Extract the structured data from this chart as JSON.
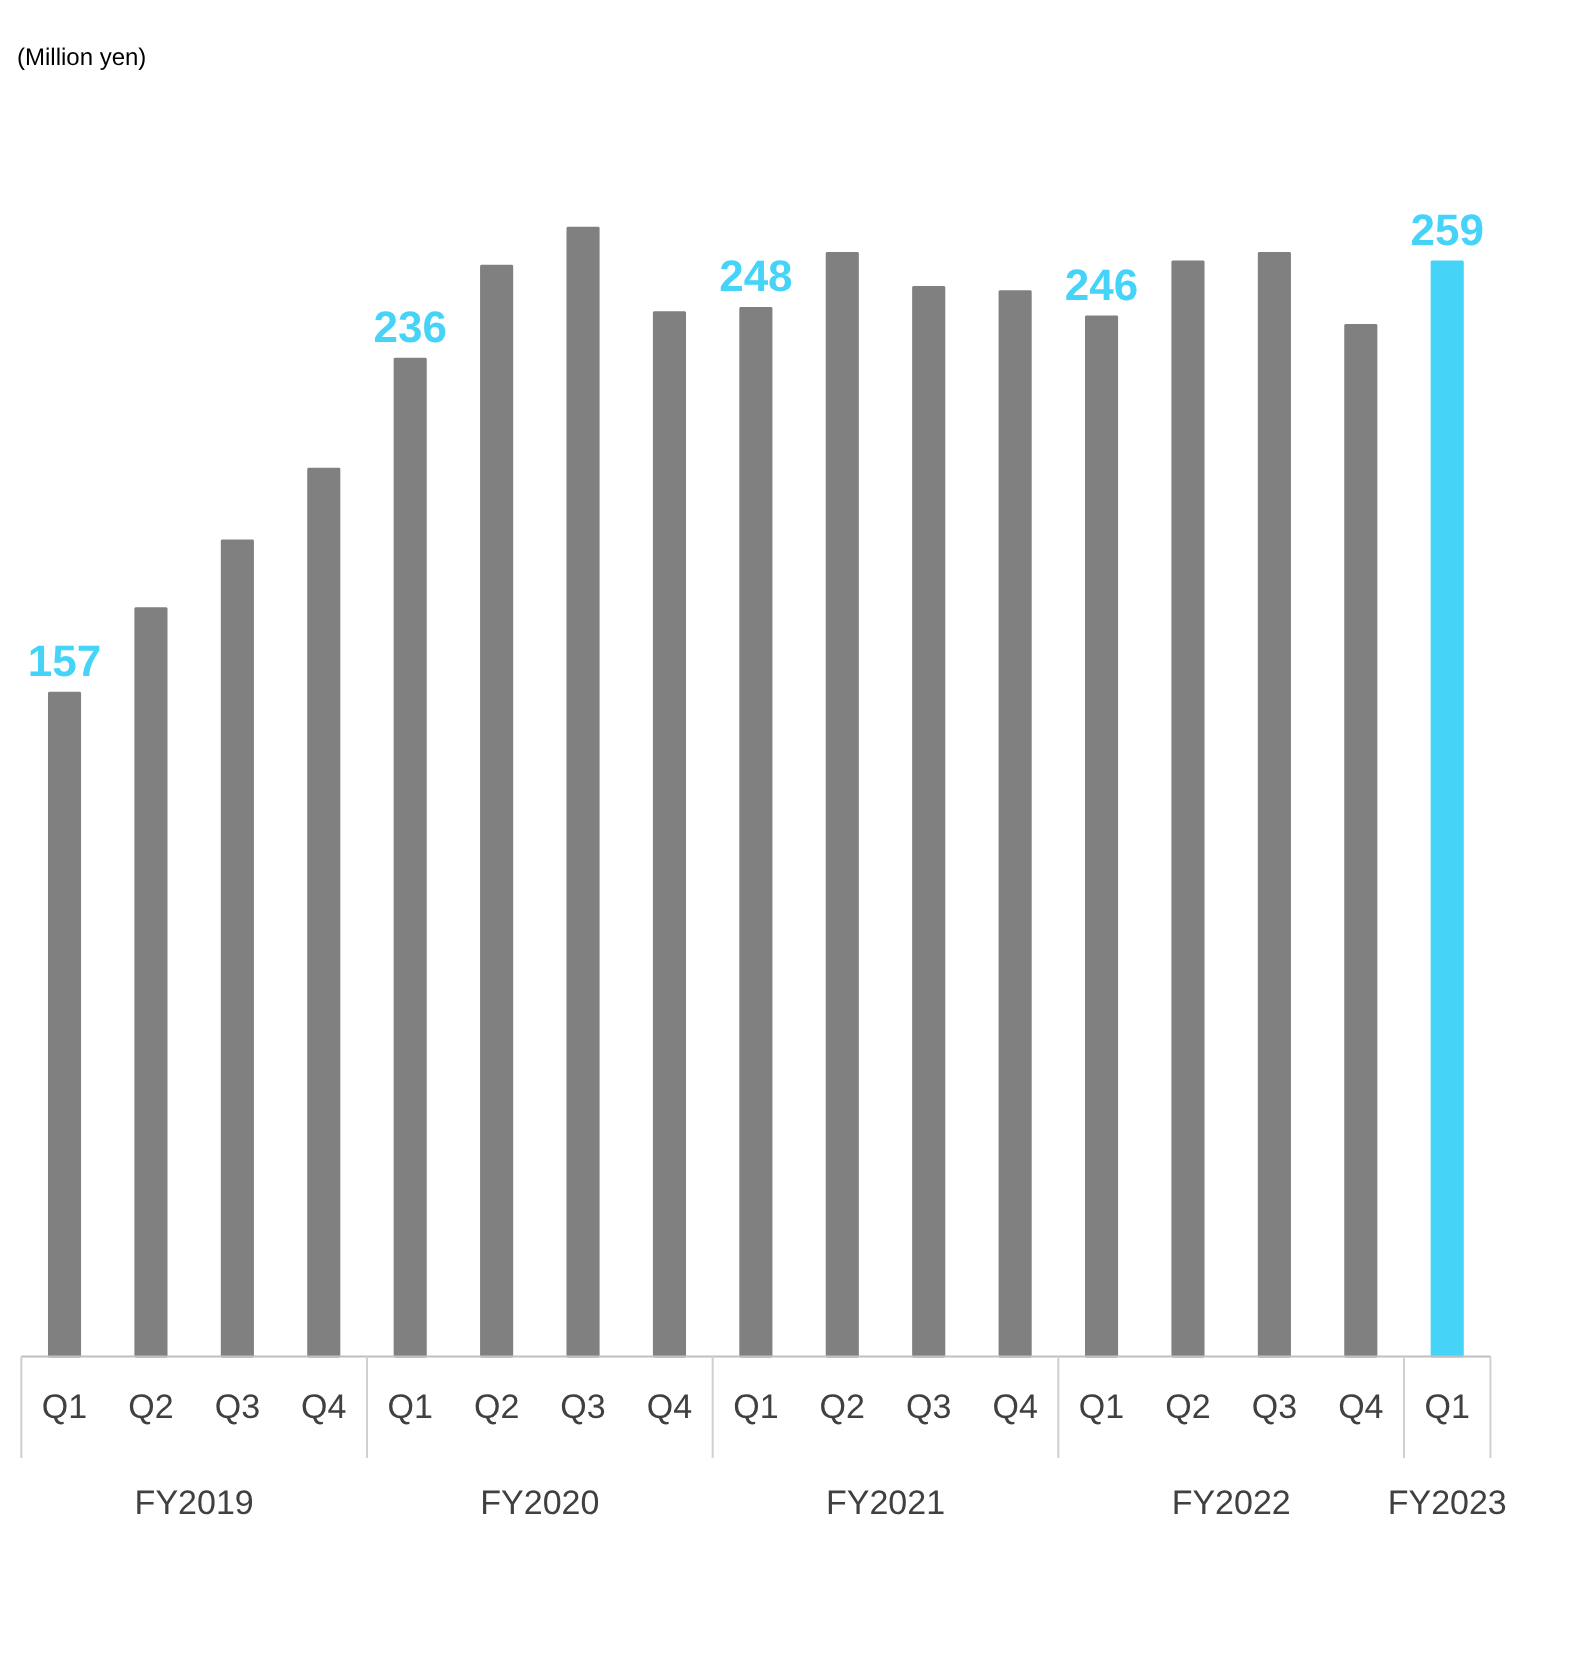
{
  "chart_data": {
    "type": "bar",
    "title": "(Million yen)",
    "categories": [
      "Q1",
      "Q2",
      "Q3",
      "Q4",
      "Q1",
      "Q2",
      "Q3",
      "Q4",
      "Q1",
      "Q2",
      "Q3",
      "Q4",
      "Q1",
      "Q2",
      "Q3",
      "Q4",
      "Q1"
    ],
    "values": [
      157,
      177,
      193,
      210,
      236,
      258,
      267,
      247,
      248,
      261,
      253,
      252,
      246,
      259,
      261,
      244,
      259
    ],
    "value_labels": [
      "157",
      null,
      null,
      null,
      "236",
      null,
      null,
      null,
      "248",
      null,
      null,
      null,
      "246",
      null,
      null,
      null,
      "259"
    ],
    "colors": [
      "#808080",
      "#808080",
      "#808080",
      "#808080",
      "#808080",
      "#808080",
      "#808080",
      "#808080",
      "#808080",
      "#808080",
      "#808080",
      "#808080",
      "#808080",
      "#808080",
      "#808080",
      "#808080",
      "#45d4f8"
    ],
    "annotations": [
      "FY2019",
      "FY2020",
      "FY2021",
      "FY2022",
      "FY2023"
    ],
    "grid": false
  }
}
